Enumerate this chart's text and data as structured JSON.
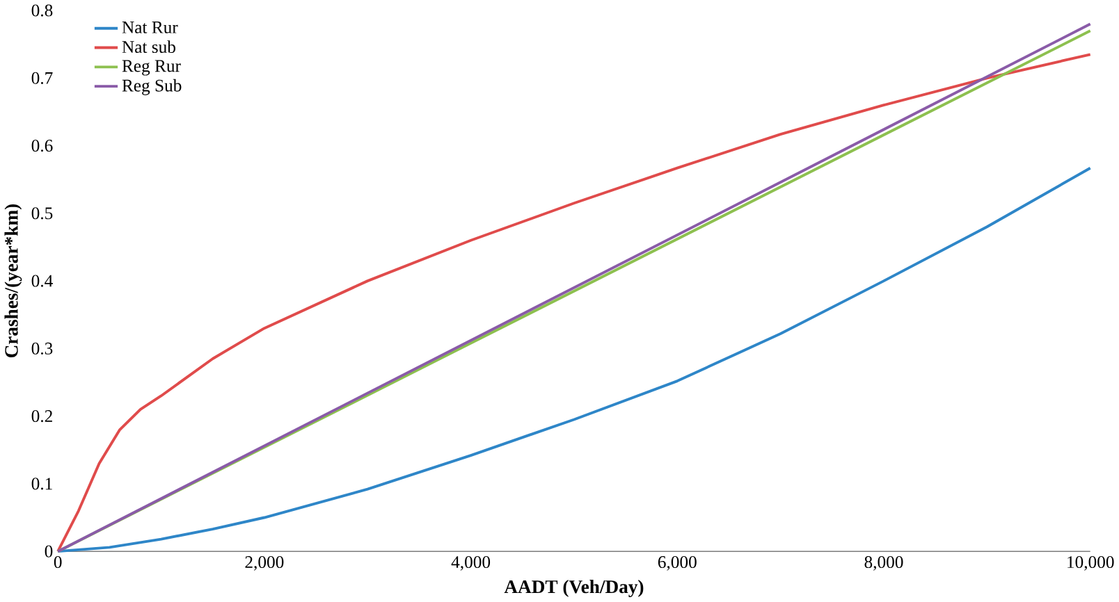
{
  "chart_data": {
    "type": "line",
    "xlabel": "AADT (Veh/Day)",
    "ylabel": "Crashes/(year*km)",
    "x": [
      0,
      500,
      1000,
      1500,
      2000,
      3000,
      4000,
      5000,
      6000,
      7000,
      8000,
      9000,
      10000
    ],
    "series": [
      {
        "name": "Nat Rur",
        "color": "#2e86c8",
        "values": [
          0,
          0.006,
          0.018,
          0.033,
          0.05,
          0.092,
          0.142,
          0.195,
          0.252,
          0.322,
          0.4,
          0.48,
          0.567
        ]
      },
      {
        "name": "Nat sub",
        "color": "#e04b4b",
        "x": [
          0,
          200,
          400,
          600,
          800,
          1000,
          1500,
          2000,
          3000,
          4000,
          5000,
          6000,
          7000,
          8000,
          9000,
          10000
        ],
        "values": [
          0,
          0.06,
          0.13,
          0.18,
          0.21,
          0.23,
          0.285,
          0.33,
          0.4,
          0.46,
          0.515,
          0.567,
          0.617,
          0.66,
          0.7,
          0.735
        ]
      },
      {
        "name": "Reg Rur",
        "color": "#8dc04f",
        "x": [
          0,
          10000
        ],
        "values": [
          0,
          0.77
        ]
      },
      {
        "name": "Reg Sub",
        "color": "#8a5ba8",
        "x": [
          0,
          10000
        ],
        "values": [
          0,
          0.78
        ]
      }
    ],
    "xlim": [
      0,
      10000
    ],
    "ylim": [
      0,
      0.8
    ],
    "xticks": [
      0,
      {
        "value": 2000,
        "label": "2,000"
      },
      {
        "value": 4000,
        "label": "4,000"
      },
      {
        "value": 6000,
        "label": "6,000"
      },
      {
        "value": 8000,
        "label": "8,000"
      },
      {
        "value": 10000,
        "label": "10,000"
      }
    ],
    "yticks": [
      0,
      0.1,
      0.2,
      0.3,
      0.4,
      0.5,
      0.6,
      0.7,
      0.8
    ],
    "legend": "top left",
    "grid": false,
    "marker": "none",
    "line_style": "solid"
  }
}
